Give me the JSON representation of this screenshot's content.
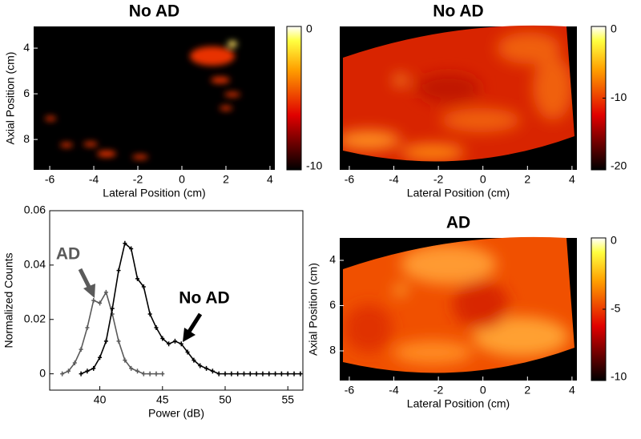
{
  "chart_data": [
    {
      "type": "heatmap",
      "title": "No AD",
      "xlabel": "Lateral Position (cm)",
      "ylabel": "Axial Position (cm)",
      "xlim": [
        -6.73,
        4.22
      ],
      "xticks": [
        -6,
        -4,
        -2,
        0,
        2,
        4
      ],
      "ylim": [
        9.33,
        3.05
      ],
      "yticks": [
        4,
        6,
        8
      ],
      "clim": [
        -10,
        0
      ],
      "cticks": [
        -10,
        0
      ]
    },
    {
      "type": "heatmap",
      "title": "No AD",
      "xlabel": "Lateral Position (cm)",
      "xlim": [
        -6.43,
        4.22
      ],
      "xticks": [
        -6,
        -4,
        -2,
        0,
        2,
        4
      ],
      "clim": [
        -20,
        0
      ],
      "cticks": [
        -20,
        -10,
        0
      ]
    },
    {
      "type": "line",
      "xlabel": "Power (dB)",
      "ylabel": "Normalized Counts",
      "xlim": [
        36,
        56.2
      ],
      "xticks": [
        40,
        45,
        50,
        55
      ],
      "ylim": [
        -0.006,
        0.06
      ],
      "yticks": [
        0,
        0.02,
        0.04,
        0.06
      ],
      "series": [
        {
          "name": "AD",
          "color": "#5a5a5a",
          "x": [
            37,
            37.5,
            38,
            38.5,
            39,
            39.5,
            40,
            40.5,
            41,
            41.5,
            42,
            42.5,
            43,
            43.5,
            44,
            44.5,
            45
          ],
          "values": [
            0,
            0.001,
            0.004,
            0.009,
            0.017,
            0.027,
            0.026,
            0.03,
            0.022,
            0.012,
            0.005,
            0.002,
            0.001,
            0,
            0,
            0,
            0
          ]
        },
        {
          "name": "No AD",
          "color": "#000000",
          "x": [
            38.5,
            39,
            39.5,
            40,
            40.5,
            41,
            41.5,
            42,
            42.5,
            43,
            43.5,
            44,
            44.5,
            45,
            45.5,
            46,
            46.5,
            47,
            47.5,
            48,
            48.5,
            49,
            49.5,
            50,
            50.5,
            51,
            51.5,
            52,
            52.5,
            53,
            53.5,
            54,
            54.5,
            55,
            55.5,
            56
          ],
          "values": [
            0,
            0.001,
            0.002,
            0.006,
            0.012,
            0.024,
            0.038,
            0.048,
            0.046,
            0.035,
            0.032,
            0.022,
            0.017,
            0.013,
            0.011,
            0.012,
            0.011,
            0.008,
            0.005,
            0.003,
            0.002,
            0.001,
            0,
            0,
            0,
            0,
            0,
            0,
            0,
            0,
            0,
            0,
            0,
            0,
            0,
            0
          ]
        }
      ]
    },
    {
      "type": "heatmap",
      "title": "AD",
      "xlabel": "Lateral Position (cm)",
      "ylabel": "Axial Position (cm)",
      "xlim": [
        -6.43,
        4.22
      ],
      "xticks": [
        -6,
        -4,
        -2,
        0,
        2,
        4
      ],
      "ylim": [
        9.31,
        3.01
      ],
      "yticks": [
        4,
        6,
        8
      ],
      "clim": [
        -10,
        0
      ],
      "cticks": [
        -10,
        -5,
        0
      ]
    }
  ]
}
